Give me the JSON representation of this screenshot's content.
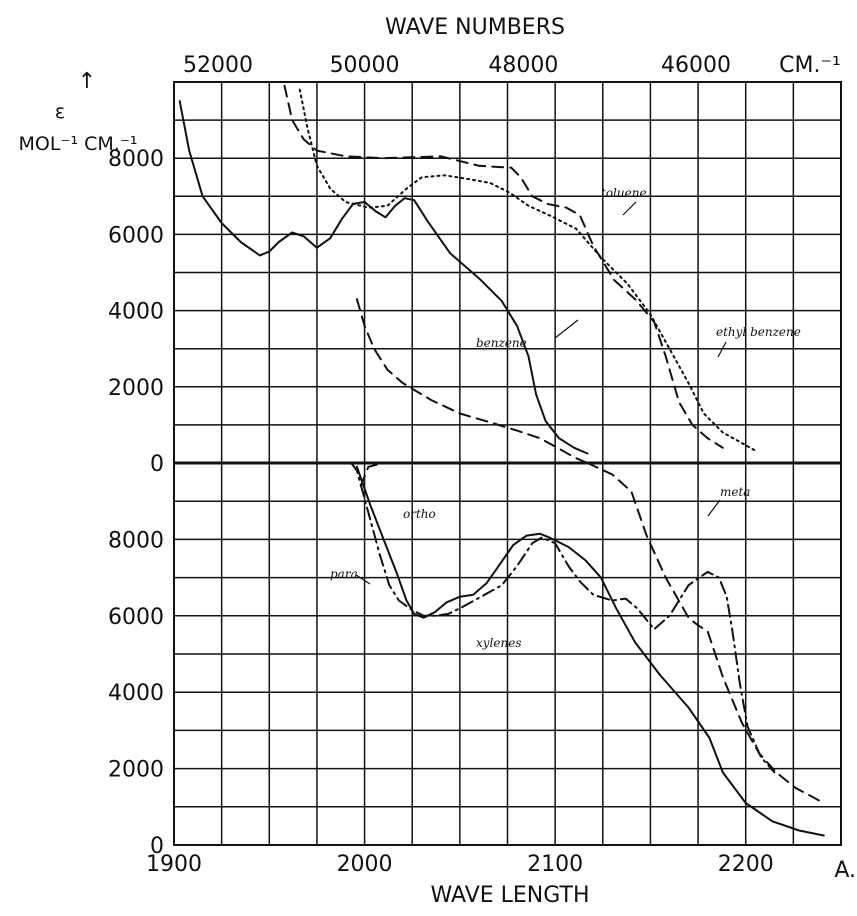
{
  "chart_data": [
    {
      "type": "line",
      "panel": "upper",
      "title": "",
      "xlabel": "WAVE LENGTH",
      "x_unit": "A.",
      "x2label": "WAVE NUMBERS",
      "x2_unit": "CM.⁻¹",
      "ylabel": "ε ↑ MOL⁻¹ CM.⁻¹",
      "ylabel_parts": [
        "ε",
        "↑",
        "MOL⁻¹ CM.⁻¹"
      ],
      "xlim": [
        1900,
        2250
      ],
      "ylim": [
        0,
        10000
      ],
      "x_ticks": [
        1900,
        2000,
        2100,
        2200
      ],
      "x_tick_labels": [
        "1900",
        "2000",
        "2100",
        "2200"
      ],
      "x2_ticks": [
        52000,
        50000,
        48000,
        46000
      ],
      "x2_tick_labels": [
        "52000",
        "50000",
        "48000",
        "46000"
      ],
      "y_ticks": [
        0,
        2000,
        4000,
        6000,
        8000
      ],
      "y_tick_labels": [
        "0",
        "2000",
        "4000",
        "6000",
        "8000"
      ],
      "grid": true,
      "series": [
        {
          "name": "benzene",
          "style": "solid",
          "points": [
            [
              1903,
              9500
            ],
            [
              1908,
              8200
            ],
            [
              1915,
              7000
            ],
            [
              1925,
              6300
            ],
            [
              1935,
              5800
            ],
            [
              1945,
              5450
            ],
            [
              1950,
              5550
            ],
            [
              1955,
              5800
            ],
            [
              1962,
              6050
            ],
            [
              1968,
              5950
            ],
            [
              1975,
              5650
            ],
            [
              1982,
              5900
            ],
            [
              1988,
              6400
            ],
            [
              1994,
              6800
            ],
            [
              2000,
              6850
            ],
            [
              2006,
              6600
            ],
            [
              2011,
              6450
            ],
            [
              2016,
              6750
            ],
            [
              2021,
              6950
            ],
            [
              2026,
              6900
            ],
            [
              2033,
              6350
            ],
            [
              2045,
              5500
            ],
            [
              2060,
              4850
            ],
            [
              2072,
              4250
            ],
            [
              2080,
              3600
            ],
            [
              2086,
              2800
            ],
            [
              2090,
              1800
            ],
            [
              2095,
              1100
            ],
            [
              2102,
              650
            ],
            [
              2110,
              400
            ],
            [
              2117,
              250
            ]
          ]
        },
        {
          "name": "toluene",
          "style": "dashed",
          "points": [
            [
              1958,
              9900
            ],
            [
              1962,
              9000
            ],
            [
              1968,
              8500
            ],
            [
              1975,
              8200
            ],
            [
              1990,
              8050
            ],
            [
              2010,
              8000
            ],
            [
              2040,
              8050
            ],
            [
              2060,
              7800
            ],
            [
              2077,
              7750
            ],
            [
              2082,
              7500
            ],
            [
              2088,
              7000
            ],
            [
              2096,
              6800
            ],
            [
              2106,
              6700
            ],
            [
              2113,
              6500
            ],
            [
              2120,
              5700
            ],
            [
              2131,
              4800
            ],
            [
              2142,
              4300
            ],
            [
              2152,
              3700
            ],
            [
              2158,
              2800
            ],
            [
              2165,
              1600
            ],
            [
              2172,
              1000
            ],
            [
              2180,
              650
            ],
            [
              2188,
              400
            ]
          ]
        },
        {
          "name": "ethyl benzene",
          "style": "dotted",
          "points": [
            [
              1966,
              9800
            ],
            [
              1970,
              8800
            ],
            [
              1975,
              7800
            ],
            [
              1982,
              7200
            ],
            [
              1990,
              6850
            ],
            [
              2002,
              6700
            ],
            [
              2012,
              6750
            ],
            [
              2022,
              7200
            ],
            [
              2030,
              7500
            ],
            [
              2042,
              7550
            ],
            [
              2055,
              7450
            ],
            [
              2066,
              7350
            ],
            [
              2076,
              7100
            ],
            [
              2086,
              6750
            ],
            [
              2097,
              6500
            ],
            [
              2111,
              6150
            ],
            [
              2124,
              5400
            ],
            [
              2138,
              4700
            ],
            [
              2150,
              3900
            ],
            [
              2160,
              3000
            ],
            [
              2170,
              2100
            ],
            [
              2178,
              1300
            ],
            [
              2188,
              800
            ],
            [
              2197,
              550
            ],
            [
              2206,
              300
            ]
          ]
        },
        {
          "name": "",
          "style": "dashed",
          "points": [
            [
              1996,
              4300
            ],
            [
              2000,
              3600
            ],
            [
              2005,
              3000
            ],
            [
              2012,
              2450
            ],
            [
              2020,
              2100
            ],
            [
              2035,
              1650
            ],
            [
              2050,
              1300
            ],
            [
              2067,
              1050
            ],
            [
              2080,
              850
            ],
            [
              2092,
              650
            ],
            [
              2103,
              350
            ],
            [
              2110,
              150
            ],
            [
              2117,
              0
            ]
          ]
        }
      ]
    },
    {
      "type": "line",
      "panel": "lower",
      "title": "",
      "xlabel": "WAVE LENGTH",
      "x_unit": "A.",
      "xlim": [
        1900,
        2250
      ],
      "ylim": [
        0,
        10000
      ],
      "x_ticks": [
        1900,
        2000,
        2100,
        2200
      ],
      "x_tick_labels": [
        "1900",
        "2000",
        "2100",
        "2200"
      ],
      "y_ticks": [
        0,
        2000,
        4000,
        6000,
        8000
      ],
      "y_tick_labels": [
        "0",
        "2000",
        "4000",
        "6000",
        "8000"
      ],
      "grid": true,
      "annotation": "xylenes",
      "series": [
        {
          "name": "ortho",
          "style": "solid",
          "points": [
            [
              1996,
              9900
            ],
            [
              2003,
              8900
            ],
            [
              2010,
              8000
            ],
            [
              2017,
              7100
            ],
            [
              2022,
              6400
            ],
            [
              2026,
              6050
            ],
            [
              2031,
              5950
            ],
            [
              2037,
              6100
            ],
            [
              2043,
              6350
            ],
            [
              2050,
              6500
            ],
            [
              2057,
              6550
            ],
            [
              2064,
              6850
            ],
            [
              2071,
              7350
            ],
            [
              2078,
              7850
            ],
            [
              2085,
              8100
            ],
            [
              2092,
              8150
            ],
            [
              2097,
              8050
            ],
            [
              2107,
              7800
            ],
            [
              2116,
              7450
            ],
            [
              2124,
              7000
            ],
            [
              2132,
              6200
            ],
            [
              2142,
              5300
            ],
            [
              2155,
              4450
            ],
            [
              2170,
              3600
            ],
            [
              2181,
              2800
            ],
            [
              2188,
              1900
            ],
            [
              2200,
              1100
            ],
            [
              2214,
              620
            ],
            [
              2228,
              380
            ],
            [
              2241,
              250
            ]
          ]
        },
        {
          "name": "meta",
          "style": "dashed",
          "points": [
            [
              1998,
              9400
            ],
            [
              2002,
              9900
            ],
            [
              2010,
              10000
            ]
          ]
        },
        {
          "name": "meta",
          "style": "dashed",
          "points": [
            [
              2117,
              10000
            ],
            [
              2130,
              9700
            ],
            [
              2140,
              9250
            ],
            [
              2148,
              8100
            ],
            [
              2158,
              7000
            ],
            [
              2166,
              6300
            ],
            [
              2170,
              5950
            ],
            [
              2175,
              5750
            ],
            [
              2180,
              5600
            ],
            [
              2188,
              4400
            ],
            [
              2198,
              3200
            ],
            [
              2207,
              2400
            ],
            [
              2216,
              1900
            ],
            [
              2226,
              1500
            ],
            [
              2241,
              1100
            ]
          ]
        },
        {
          "name": "para",
          "style": "dashdot",
          "points": [
            [
              1993,
              10000
            ],
            [
              1996,
              9800
            ],
            [
              2002,
              8700
            ],
            [
              2008,
              7600
            ],
            [
              2013,
              6800
            ],
            [
              2018,
              6400
            ],
            [
              2025,
              6150
            ],
            [
              2031,
              6000
            ],
            [
              2037,
              6000
            ],
            [
              2044,
              6050
            ],
            [
              2052,
              6250
            ],
            [
              2063,
              6550
            ],
            [
              2072,
              6800
            ],
            [
              2080,
              7300
            ],
            [
              2088,
              7900
            ],
            [
              2093,
              8050
            ],
            [
              2100,
              7900
            ],
            [
              2107,
              7300
            ],
            [
              2113,
              6900
            ],
            [
              2120,
              6550
            ],
            [
              2130,
              6400
            ],
            [
              2137,
              6450
            ],
            [
              2143,
              6200
            ],
            [
              2152,
              5650
            ],
            [
              2160,
              6000
            ],
            [
              2170,
              6800
            ],
            [
              2180,
              7150
            ],
            [
              2186,
              7000
            ],
            [
              2190,
              6500
            ],
            [
              2193,
              5600
            ],
            [
              2197,
              4200
            ],
            [
              2201,
              3100
            ],
            [
              2208,
              2300
            ],
            [
              2215,
              1900
            ]
          ]
        }
      ]
    }
  ]
}
